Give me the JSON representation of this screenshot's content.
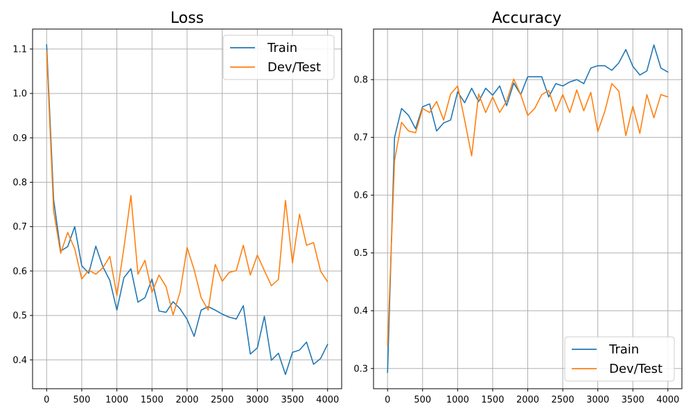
{
  "chart_data": [
    {
      "type": "line",
      "title": "Loss",
      "xlabel": "",
      "ylabel": "",
      "xlim": [
        -200,
        4200
      ],
      "ylim": [
        0.335,
        1.145
      ],
      "xticks": [
        0,
        500,
        1000,
        1500,
        2000,
        2500,
        3000,
        3500,
        4000
      ],
      "yticks": [
        0.4,
        0.5,
        0.6,
        0.7,
        0.8,
        0.9,
        1.0,
        1.1
      ],
      "ytick_labels": [
        "0.4",
        "0.5",
        "0.6",
        "0.7",
        "0.8",
        "0.9",
        "1.0",
        "1.1"
      ],
      "grid": true,
      "legend_position": "upper-right",
      "x": [
        0,
        100,
        200,
        300,
        400,
        500,
        600,
        700,
        800,
        900,
        1000,
        1100,
        1200,
        1300,
        1400,
        1500,
        1600,
        1700,
        1800,
        1900,
        2000,
        2100,
        2200,
        2300,
        2400,
        2500,
        2600,
        2700,
        2800,
        2900,
        3000,
        3100,
        3200,
        3300,
        3400,
        3500,
        3600,
        3700,
        3800,
        3900,
        4000
      ],
      "series": [
        {
          "name": "Train",
          "color": "#1f77b4",
          "values": [
            1.11,
            0.76,
            0.645,
            0.655,
            0.7,
            0.612,
            0.595,
            0.656,
            0.61,
            0.579,
            0.512,
            0.585,
            0.605,
            0.53,
            0.54,
            0.582,
            0.51,
            0.507,
            0.531,
            0.515,
            0.491,
            0.453,
            0.512,
            0.52,
            0.512,
            0.503,
            0.496,
            0.492,
            0.522,
            0.413,
            0.427,
            0.498,
            0.399,
            0.415,
            0.367,
            0.417,
            0.422,
            0.44,
            0.39,
            0.403,
            0.435
          ]
        },
        {
          "name": "Dev/Test",
          "color": "#ff7f0e",
          "values": [
            1.095,
            0.735,
            0.64,
            0.687,
            0.65,
            0.582,
            0.602,
            0.593,
            0.607,
            0.633,
            0.545,
            0.652,
            0.77,
            0.593,
            0.624,
            0.552,
            0.591,
            0.565,
            0.501,
            0.553,
            0.653,
            0.603,
            0.54,
            0.512,
            0.615,
            0.577,
            0.597,
            0.601,
            0.658,
            0.591,
            0.636,
            0.601,
            0.567,
            0.581,
            0.759,
            0.618,
            0.728,
            0.658,
            0.664,
            0.6,
            0.576
          ]
        }
      ]
    },
    {
      "type": "line",
      "title": "Accuracy",
      "xlabel": "",
      "ylabel": "",
      "xlim": [
        -200,
        4200
      ],
      "ylim": [
        0.265,
        0.8875
      ],
      "xticks": [
        0,
        500,
        1000,
        1500,
        2000,
        2500,
        3000,
        3500,
        4000
      ],
      "yticks": [
        0.3,
        0.4,
        0.5,
        0.6,
        0.7,
        0.8
      ],
      "ytick_labels": [
        "0.3",
        "0.4",
        "0.5",
        "0.6",
        "0.7",
        "0.8"
      ],
      "grid": true,
      "legend_position": "lower-right",
      "x": [
        0,
        100,
        200,
        300,
        400,
        500,
        600,
        700,
        800,
        900,
        1000,
        1100,
        1200,
        1300,
        1400,
        1500,
        1600,
        1700,
        1800,
        1900,
        2000,
        2100,
        2200,
        2300,
        2400,
        2500,
        2600,
        2700,
        2800,
        2900,
        3000,
        3100,
        3200,
        3300,
        3400,
        3500,
        3600,
        3700,
        3800,
        3900,
        4000
      ],
      "series": [
        {
          "name": "Train",
          "color": "#1f77b4",
          "values": [
            0.293,
            0.7,
            0.75,
            0.738,
            0.715,
            0.753,
            0.758,
            0.711,
            0.725,
            0.73,
            0.779,
            0.76,
            0.785,
            0.762,
            0.785,
            0.773,
            0.789,
            0.755,
            0.794,
            0.774,
            0.805,
            0.805,
            0.805,
            0.77,
            0.793,
            0.789,
            0.796,
            0.8,
            0.793,
            0.82,
            0.824,
            0.824,
            0.816,
            0.829,
            0.852,
            0.823,
            0.808,
            0.815,
            0.86,
            0.82,
            0.813
          ]
        },
        {
          "name": "Dev/Test",
          "color": "#ff7f0e",
          "values": [
            0.34,
            0.66,
            0.726,
            0.711,
            0.708,
            0.75,
            0.743,
            0.762,
            0.73,
            0.775,
            0.789,
            0.73,
            0.668,
            0.775,
            0.743,
            0.77,
            0.743,
            0.763,
            0.801,
            0.774,
            0.738,
            0.75,
            0.774,
            0.781,
            0.745,
            0.774,
            0.743,
            0.782,
            0.746,
            0.778,
            0.71,
            0.745,
            0.793,
            0.78,
            0.703,
            0.754,
            0.707,
            0.774,
            0.734,
            0.774,
            0.77
          ]
        }
      ]
    }
  ]
}
